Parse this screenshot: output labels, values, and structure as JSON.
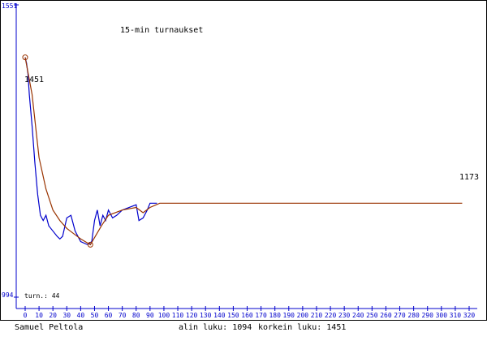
{
  "chart_data": {
    "type": "line",
    "title": "15-min turnaukset",
    "xlim": [
      0,
      320
    ],
    "xticks": [
      0,
      10,
      20,
      30,
      40,
      50,
      60,
      70,
      80,
      90,
      100,
      110,
      120,
      130,
      140,
      150,
      160,
      170,
      180,
      190,
      200,
      210,
      220,
      230,
      240,
      250,
      260,
      270,
      280,
      290,
      300,
      310,
      320
    ],
    "ylim": [
      994,
      1551
    ],
    "yticks": [
      994,
      1551
    ],
    "axis_color": "#0000cc",
    "series": [
      {
        "color": "#0000cc",
        "x": [
          0,
          1,
          2,
          3,
          5,
          7,
          9,
          11,
          13,
          15,
          17,
          20,
          23,
          25,
          27,
          30,
          33,
          36,
          40,
          45,
          48,
          50,
          52,
          54,
          56,
          58,
          60,
          63,
          66,
          70,
          75,
          80,
          82,
          85,
          88,
          90,
          95
        ],
        "values": [
          1451,
          1440,
          1420,
          1380,
          1320,
          1250,
          1190,
          1150,
          1140,
          1150,
          1130,
          1120,
          1110,
          1105,
          1110,
          1145,
          1150,
          1120,
          1100,
          1094,
          1100,
          1140,
          1160,
          1130,
          1150,
          1140,
          1160,
          1145,
          1150,
          1160,
          1165,
          1170,
          1140,
          1145,
          1160,
          1173,
          1173
        ]
      },
      {
        "color": "#993300",
        "x": [
          0,
          5,
          10,
          15,
          20,
          25,
          30,
          35,
          40,
          47,
          55,
          60,
          70,
          80,
          85,
          90,
          97,
          315
        ],
        "values": [
          1451,
          1380,
          1260,
          1200,
          1160,
          1140,
          1125,
          1115,
          1105,
          1094,
          1130,
          1150,
          1160,
          1165,
          1155,
          1165,
          1173,
          1173
        ],
        "markers": [
          0,
          9
        ]
      }
    ],
    "annotations": [
      "1451",
      "1173",
      "turn.: 44"
    ],
    "footer": {
      "player": "Samuel Peltola",
      "low": "alin luku: 1094",
      "high": "korkein luku: 1451"
    }
  }
}
